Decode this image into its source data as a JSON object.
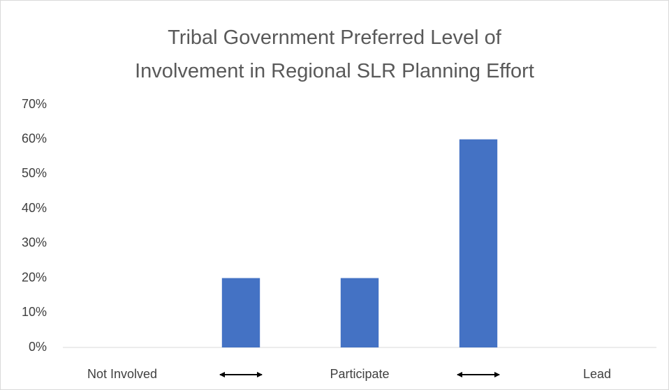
{
  "chart_data": {
    "type": "bar",
    "title": "Tribal Government Preferred Level of Involvement in Regional SLR Planning Effort",
    "categories": [
      "Not Involved",
      null,
      "Participate",
      null,
      "Lead"
    ],
    "values": [
      0,
      20,
      20,
      60,
      0
    ],
    "color": "#4472c4",
    "ylim": [
      0,
      70
    ],
    "yticks": [
      {
        "value": 0,
        "label": "0%"
      },
      {
        "value": 10,
        "label": "10%"
      },
      {
        "value": 20,
        "label": "20%"
      },
      {
        "value": 30,
        "label": "30%"
      },
      {
        "value": 40,
        "label": "40%"
      },
      {
        "value": 50,
        "label": "50%"
      },
      {
        "value": 60,
        "label": "60%"
      },
      {
        "value": 70,
        "label": "70%"
      }
    ],
    "grid": false
  }
}
